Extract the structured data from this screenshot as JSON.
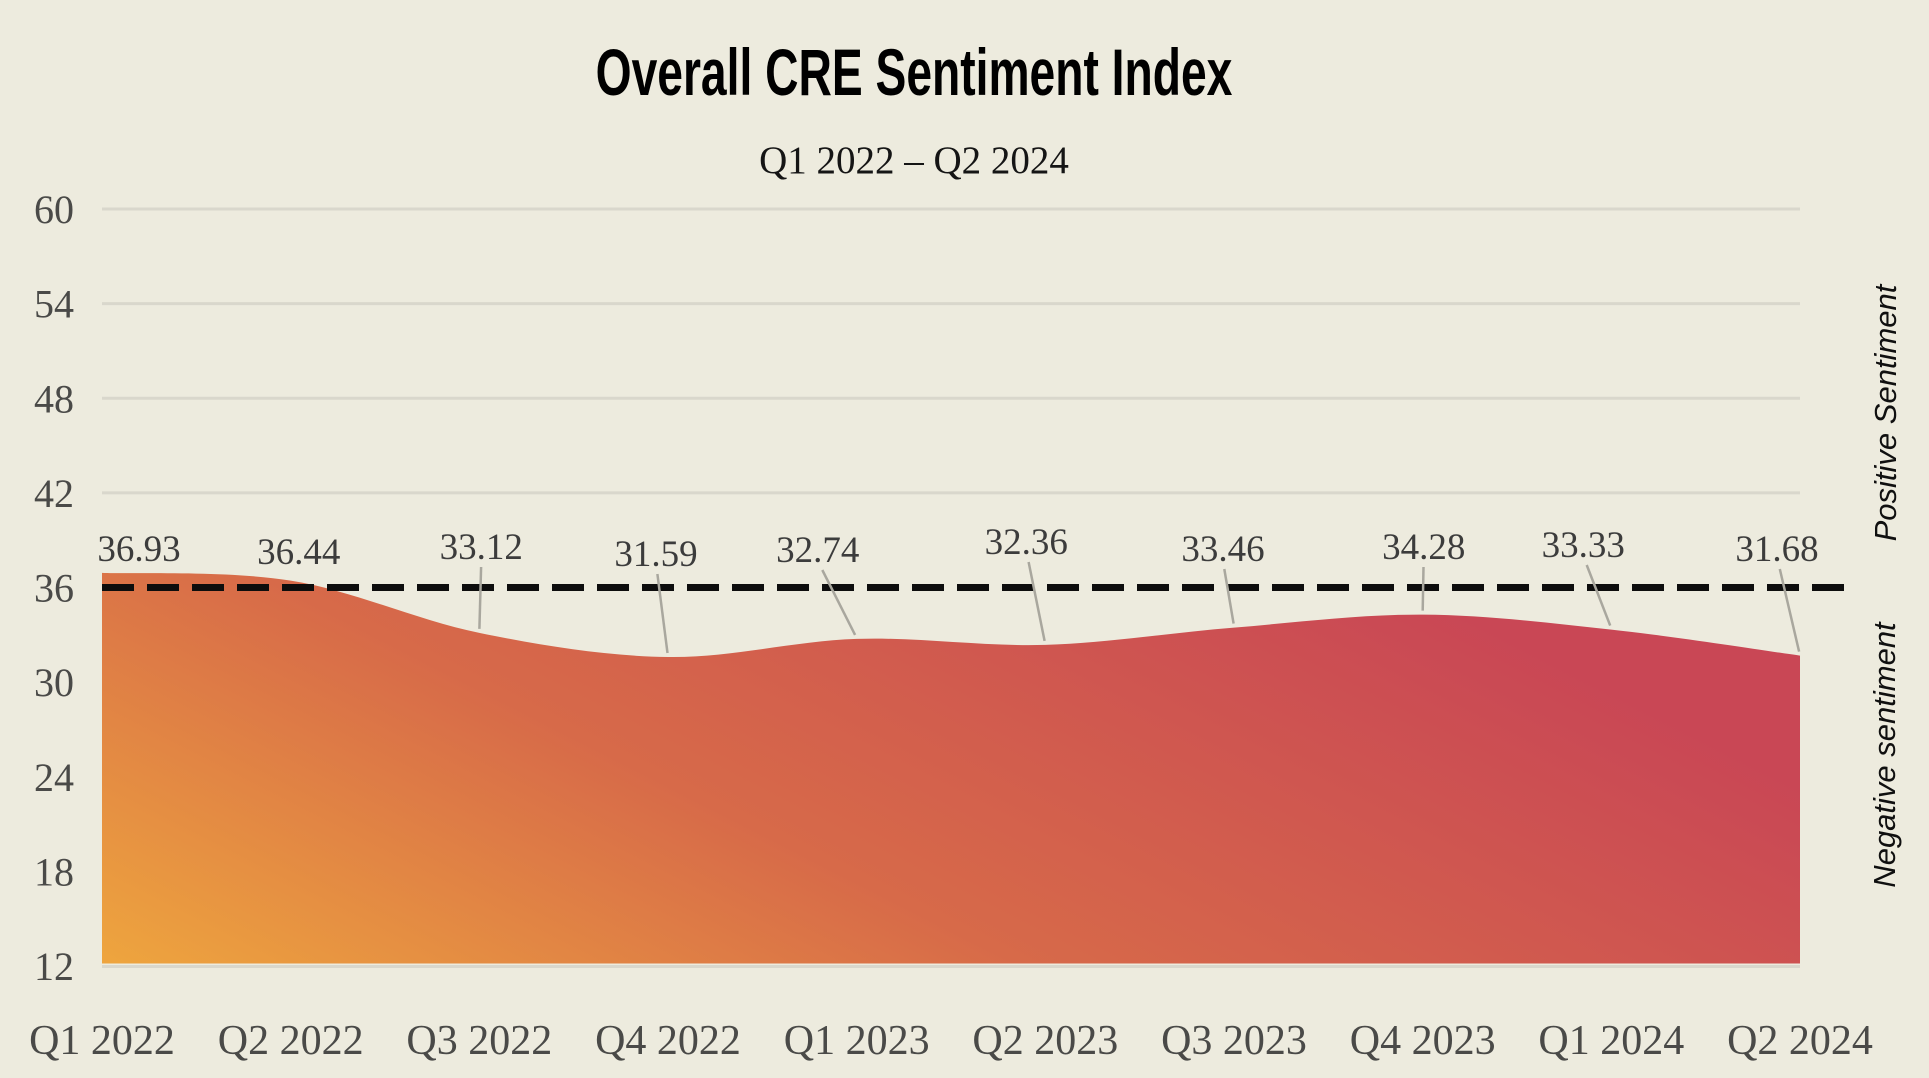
{
  "header": {
    "title": "Overall CRE Sentiment Index",
    "subtitle": "Q1 2022 – Q2 2024"
  },
  "side_labels": {
    "positive": "Positive Sentiment",
    "negative": "Negative sentiment"
  },
  "chart_data": {
    "type": "area",
    "title": "Overall CRE Sentiment Index",
    "subtitle": "Q1 2022 – Q2 2024",
    "categories": [
      "Q1 2022",
      "Q2 2022",
      "Q3 2022",
      "Q4 2022",
      "Q1 2023",
      "Q2 2023",
      "Q3 2023",
      "Q4 2023",
      "Q1 2024",
      "Q2 2024"
    ],
    "values": [
      36.93,
      36.44,
      33.12,
      31.59,
      32.74,
      32.36,
      33.46,
      34.28,
      33.33,
      31.68
    ],
    "ylim": [
      12,
      60
    ],
    "yticks": [
      60,
      54,
      48,
      42,
      36,
      30,
      24,
      18,
      12
    ],
    "grid": "horizontal",
    "legend": "none",
    "reference_line": {
      "value": 36,
      "style": "dashed",
      "color": "#0d0d0d"
    },
    "right_axis_labels": {
      "above_line": "Positive Sentiment",
      "below_line": "Negative sentiment"
    },
    "value_labels_shown": true,
    "colors": {
      "background": "#edebde",
      "gridline": "#d9d7cc",
      "area_gradient": [
        "#eea53e",
        "#d76a49",
        "#c94755"
      ],
      "axis_text": "#4a4a48",
      "value_text": "#3c3c3c",
      "leader_line": "#a9a79e"
    },
    "value_label_offsets": [
      {
        "dx": 37,
        "y": 548
      },
      {
        "dx": 8,
        "y": 551
      },
      {
        "dx": 2,
        "y": 546
      },
      {
        "dx": -12,
        "y": 553
      },
      {
        "dx": -39,
        "y": 549
      },
      {
        "dx": -19,
        "y": 541
      },
      {
        "dx": -11,
        "y": 548
      },
      {
        "dx": 1,
        "y": 546
      },
      {
        "dx": -28,
        "y": 544
      },
      {
        "dx": -23,
        "y": 548
      }
    ],
    "leader_flags": [
      false,
      false,
      true,
      true,
      true,
      true,
      true,
      true,
      true,
      true
    ]
  }
}
